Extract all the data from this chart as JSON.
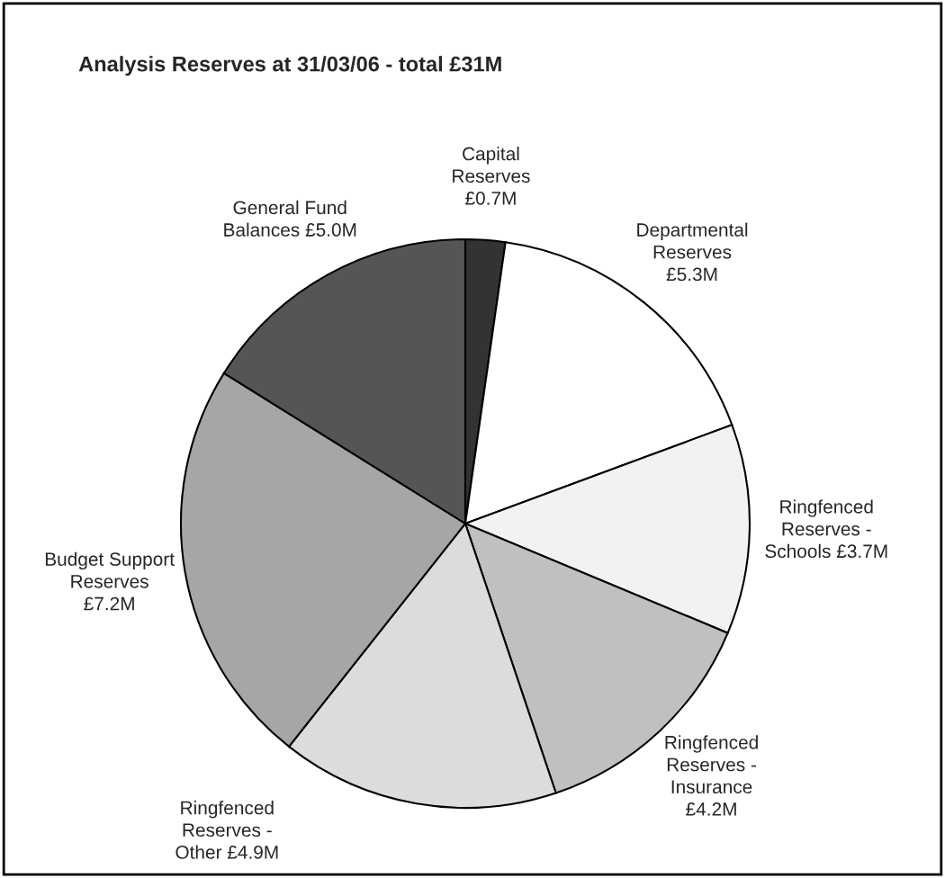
{
  "chart_data": {
    "type": "pie",
    "title": "Analysis Reserves at 31/03/06 - total £31M",
    "categories": [
      "Capital\nReserves",
      "Departmental\nReserves",
      "Ringfenced\nReserves -\nSchools",
      "Ringfenced\nReserves -\nInsurance",
      "Ringfenced\nReserves -\nOther",
      "Budget Support\nReserves",
      "General Fund\nBalances"
    ],
    "values": [
      0.7,
      5.3,
      3.7,
      4.2,
      4.9,
      7.2,
      5.0
    ],
    "value_labels": [
      "£0.7M",
      "£5.3M",
      "£3.7M",
      "£4.2M",
      "£4.9M",
      "£7.2M",
      "£5.0M"
    ],
    "colors": [
      "#333333",
      "#ffffff",
      "#f2f2f2",
      "#c0c0c0",
      "#dcdcdc",
      "#a6a6a6",
      "#555555"
    ],
    "legend": false
  }
}
